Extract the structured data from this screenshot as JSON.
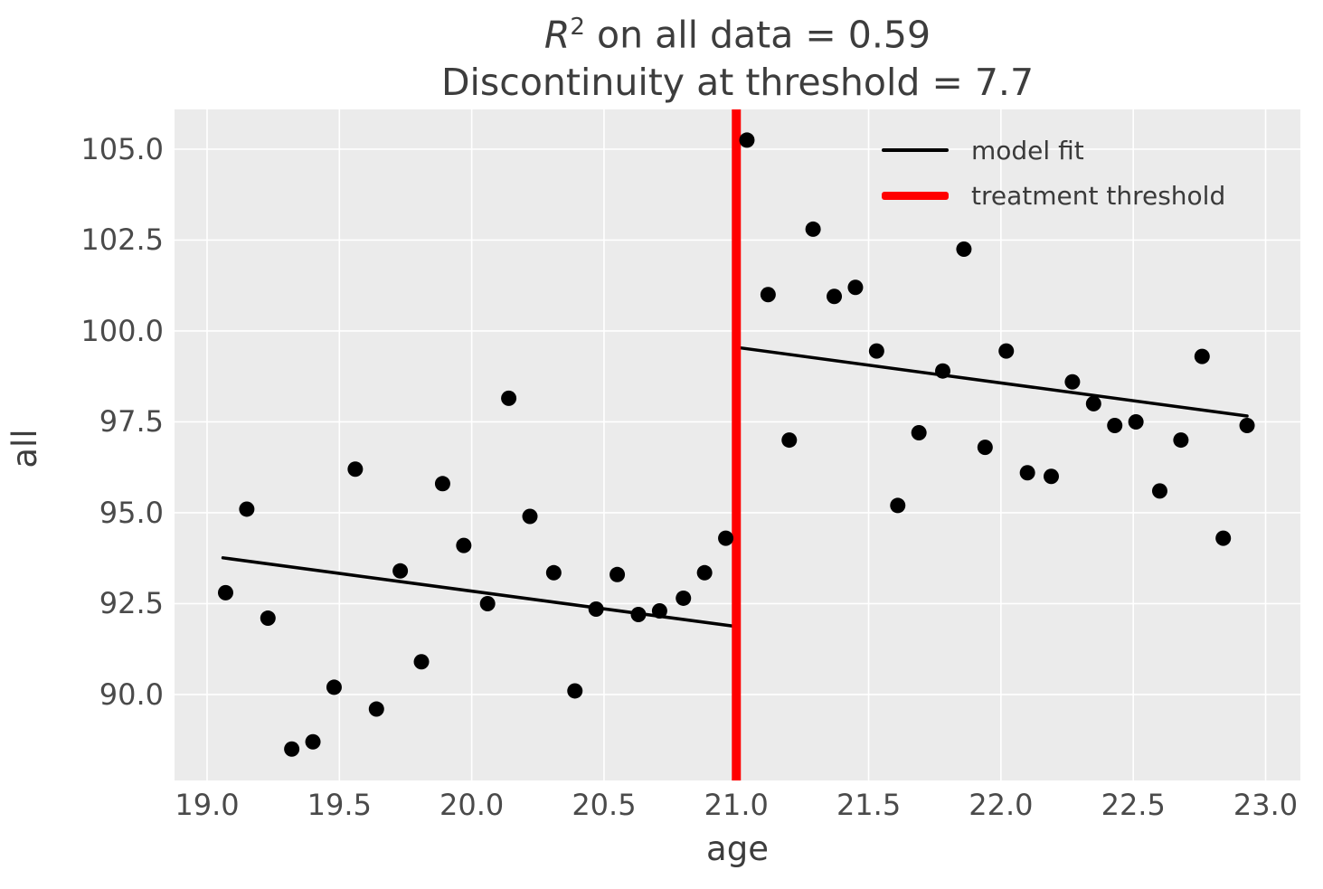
{
  "title": {
    "r_italic": "R",
    "r_sup": "2",
    "line1_rest": " on all data = 0.59",
    "line2": "Discontinuity at threshold = 7.7"
  },
  "chart_data": {
    "type": "scatter",
    "title": "R^2 on all data = 0.59\nDiscontinuity at threshold = 7.7",
    "xlabel": "age",
    "ylabel": "all",
    "xlim": [
      18.877,
      23.1315
    ],
    "ylim": [
      87.636,
      106.094
    ],
    "x_ticks": [
      19.0,
      19.5,
      20.0,
      20.5,
      21.0,
      21.5,
      22.0,
      22.5,
      23.0
    ],
    "y_ticks": [
      90.0,
      92.5,
      95.0,
      97.5,
      100.0,
      102.5,
      105.0
    ],
    "grid": true,
    "legend_position": "upper right",
    "points": [
      [
        19.07,
        92.8
      ],
      [
        19.15,
        95.1
      ],
      [
        19.23,
        92.1
      ],
      [
        19.32,
        88.5
      ],
      [
        19.4,
        88.7
      ],
      [
        19.48,
        90.2
      ],
      [
        19.56,
        96.2
      ],
      [
        19.64,
        89.6
      ],
      [
        19.73,
        93.4
      ],
      [
        19.81,
        90.9
      ],
      [
        19.89,
        95.8
      ],
      [
        19.97,
        94.1
      ],
      [
        20.06,
        92.5
      ],
      [
        20.14,
        98.15
      ],
      [
        20.22,
        94.9
      ],
      [
        20.31,
        93.35
      ],
      [
        20.39,
        90.1
      ],
      [
        20.47,
        92.35
      ],
      [
        20.55,
        93.3
      ],
      [
        20.63,
        92.2
      ],
      [
        20.71,
        92.3
      ],
      [
        20.8,
        92.65
      ],
      [
        20.88,
        93.35
      ],
      [
        20.96,
        94.3
      ],
      [
        21.04,
        105.25
      ],
      [
        21.12,
        101.0
      ],
      [
        21.2,
        97.0
      ],
      [
        21.29,
        102.8
      ],
      [
        21.37,
        100.95
      ],
      [
        21.45,
        101.2
      ],
      [
        21.53,
        99.45
      ],
      [
        21.61,
        95.2
      ],
      [
        21.69,
        97.2
      ],
      [
        21.78,
        98.9
      ],
      [
        21.86,
        102.25
      ],
      [
        21.94,
        96.8
      ],
      [
        22.02,
        99.45
      ],
      [
        22.1,
        96.1
      ],
      [
        22.19,
        96.0
      ],
      [
        22.27,
        98.6
      ],
      [
        22.35,
        98.0
      ],
      [
        22.43,
        97.4
      ],
      [
        22.51,
        97.5
      ],
      [
        22.6,
        95.6
      ],
      [
        22.68,
        97.0
      ],
      [
        22.76,
        99.3
      ],
      [
        22.84,
        94.3
      ],
      [
        22.93,
        97.4
      ]
    ],
    "fit_lines": [
      {
        "x1": 19.06,
        "y1": 93.76,
        "x2": 21.0,
        "y2": 91.87
      },
      {
        "x1": 21.0,
        "y1": 99.55,
        "x2": 22.93,
        "y2": 97.66
      }
    ],
    "threshold_x": 21.0,
    "legend": [
      {
        "label": "model fit",
        "color": "#000000",
        "thickness": 4
      },
      {
        "label": "treatment threshold",
        "color": "#ff0000",
        "thickness": 9
      }
    ],
    "colors": {
      "plot_bg": "#ebebeb",
      "grid": "#ffffff",
      "point": "#000000",
      "fit_line": "#000000",
      "threshold": "#ff0000",
      "text": "#3d3d3d",
      "tick_text": "#4a4a4a"
    }
  }
}
